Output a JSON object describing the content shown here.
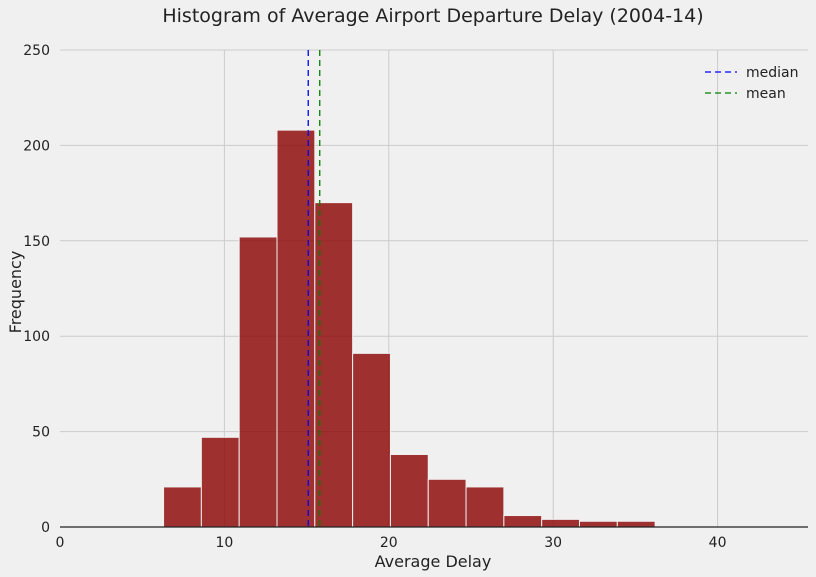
{
  "chart_data": {
    "type": "bar",
    "title": "Histogram of Average Airport Departure Delay (2004-14)",
    "xlabel": "Average Delay",
    "ylabel": "Frequency",
    "xlim": [
      0,
      45.5
    ],
    "ylim": [
      0,
      250
    ],
    "xticks": [
      0,
      10,
      20,
      30,
      40
    ],
    "yticks": [
      0,
      50,
      100,
      150,
      200,
      250
    ],
    "grid": true,
    "bar_color": "#8b0000",
    "bins": [
      {
        "x0": 6.3,
        "x1": 8.6,
        "count": 21
      },
      {
        "x0": 8.6,
        "x1": 10.9,
        "count": 47
      },
      {
        "x0": 10.9,
        "x1": 13.2,
        "count": 152
      },
      {
        "x0": 13.2,
        "x1": 15.5,
        "count": 208
      },
      {
        "x0": 15.5,
        "x1": 17.8,
        "count": 170
      },
      {
        "x0": 17.8,
        "x1": 20.1,
        "count": 91
      },
      {
        "x0": 20.1,
        "x1": 22.4,
        "count": 38
      },
      {
        "x0": 22.4,
        "x1": 24.7,
        "count": 25
      },
      {
        "x0": 24.7,
        "x1": 27.0,
        "count": 21
      },
      {
        "x0": 27.0,
        "x1": 29.3,
        "count": 6
      },
      {
        "x0": 29.3,
        "x1": 31.6,
        "count": 4
      },
      {
        "x0": 31.6,
        "x1": 33.9,
        "count": 3
      },
      {
        "x0": 33.9,
        "x1": 36.2,
        "count": 3
      }
    ],
    "reference_lines": [
      {
        "name": "median",
        "value": 15.1,
        "color": "#0000ff"
      },
      {
        "name": "mean",
        "value": 15.8,
        "color": "#008000"
      }
    ],
    "legend": {
      "position": "top-right"
    }
  }
}
